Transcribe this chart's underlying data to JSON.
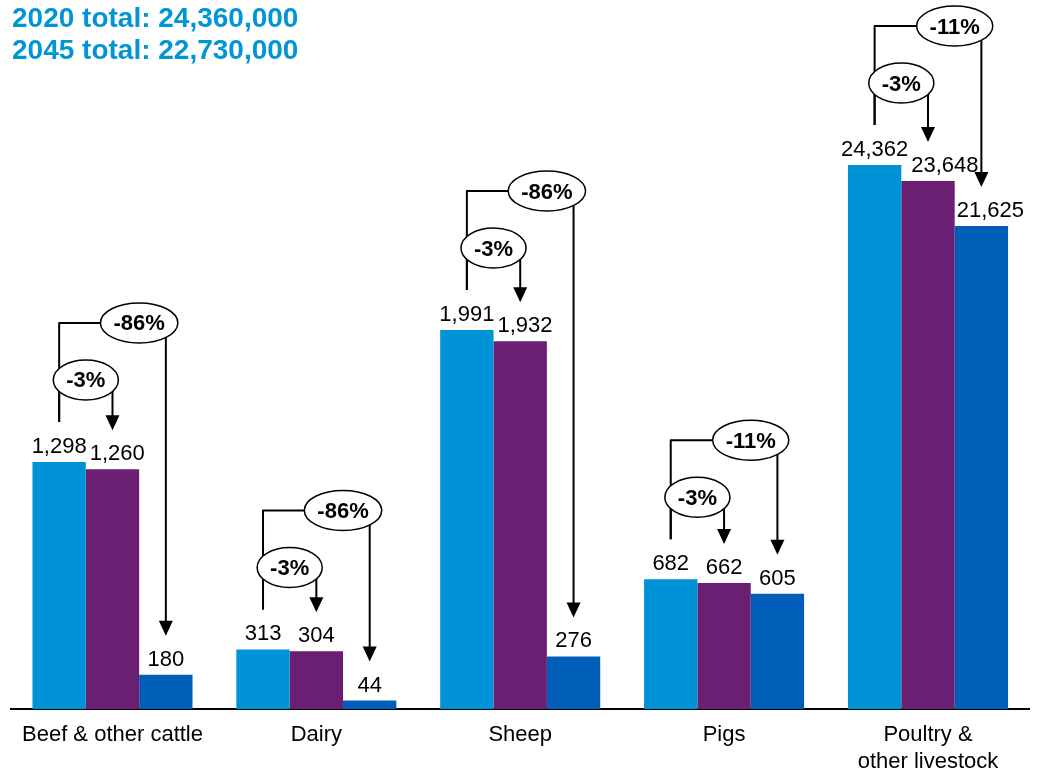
{
  "chart_data": [
    {
      "type": "bar",
      "title": "2020 total: 24,360,000",
      "subtitle": "2045 total: 22,730,000",
      "categories": [
        "Beef & other cattle",
        "Dairy",
        "Sheep",
        "Pigs"
      ],
      "series": [
        {
          "color": "#0092d6",
          "values": [
            1298,
            313,
            1991,
            682
          ],
          "value_labels": [
            "1,298",
            "313",
            "1,991",
            "682"
          ]
        },
        {
          "color": "#6b1f73",
          "values": [
            1260,
            304,
            1932,
            662
          ],
          "value_labels": [
            "1,260",
            "304",
            "1,932",
            "662"
          ]
        },
        {
          "color": "#005eb8",
          "values": [
            180,
            44,
            276,
            605
          ],
          "value_labels": [
            "180",
            "44",
            "276",
            "605"
          ]
        }
      ],
      "tick_labels": "x",
      "annotations": [
        "-3%",
        "-86%",
        "-3%",
        "-86%",
        "-3%",
        "-86%",
        "-3%",
        "-11%"
      ]
    },
    {
      "type": "bar",
      "categories": [
        "Poultry & other livestock"
      ],
      "series": [
        {
          "color": "#0092d6",
          "values": [
            24362
          ],
          "value_labels": [
            "24,362"
          ]
        },
        {
          "color": "#6b1f73",
          "values": [
            23648
          ],
          "value_labels": [
            "23,648"
          ]
        },
        {
          "color": "#005eb8",
          "values": [
            21625
          ],
          "value_labels": [
            "21,625"
          ]
        }
      ],
      "tick_labels": "x",
      "annotations": [
        "-3%",
        "-11%"
      ]
    }
  ]
}
